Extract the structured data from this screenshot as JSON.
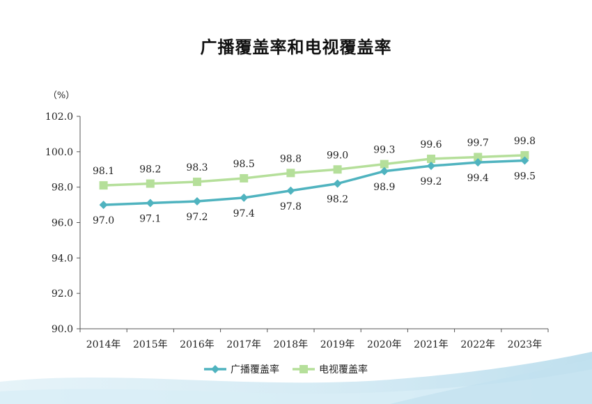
{
  "chart_data": {
    "type": "line",
    "title": "广播覆盖率和电视覆盖率",
    "ylabel": "（%）",
    "xlabel": "",
    "ylim": [
      90.0,
      102.0
    ],
    "yticks": [
      "90.0",
      "92.0",
      "94.0",
      "96.0",
      "98.0",
      "100.0",
      "102.0"
    ],
    "categories": [
      "2014年",
      "2015年",
      "2016年",
      "2017年",
      "2018年",
      "2019年",
      "2020年",
      "2021年",
      "2022年",
      "2023年"
    ],
    "series": [
      {
        "name": "广播覆盖率",
        "color": "#4fb3bf",
        "marker": "diamond",
        "values": [
          97.0,
          97.1,
          97.2,
          97.4,
          97.8,
          98.2,
          98.9,
          99.2,
          99.4,
          99.5
        ],
        "labels": [
          "97.0",
          "97.1",
          "97.2",
          "97.4",
          "97.8",
          "98.2",
          "98.9",
          "99.2",
          "99.4",
          "99.5"
        ]
      },
      {
        "name": "电视覆盖率",
        "color": "#b5df9a",
        "marker": "square",
        "values": [
          98.1,
          98.2,
          98.3,
          98.5,
          98.8,
          99.0,
          99.3,
          99.6,
          99.7,
          99.8
        ],
        "labels": [
          "98.1",
          "98.2",
          "98.3",
          "98.5",
          "98.8",
          "99.0",
          "99.3",
          "99.6",
          "99.7",
          "99.8"
        ]
      }
    ],
    "legend": "bottom",
    "grid": false
  }
}
